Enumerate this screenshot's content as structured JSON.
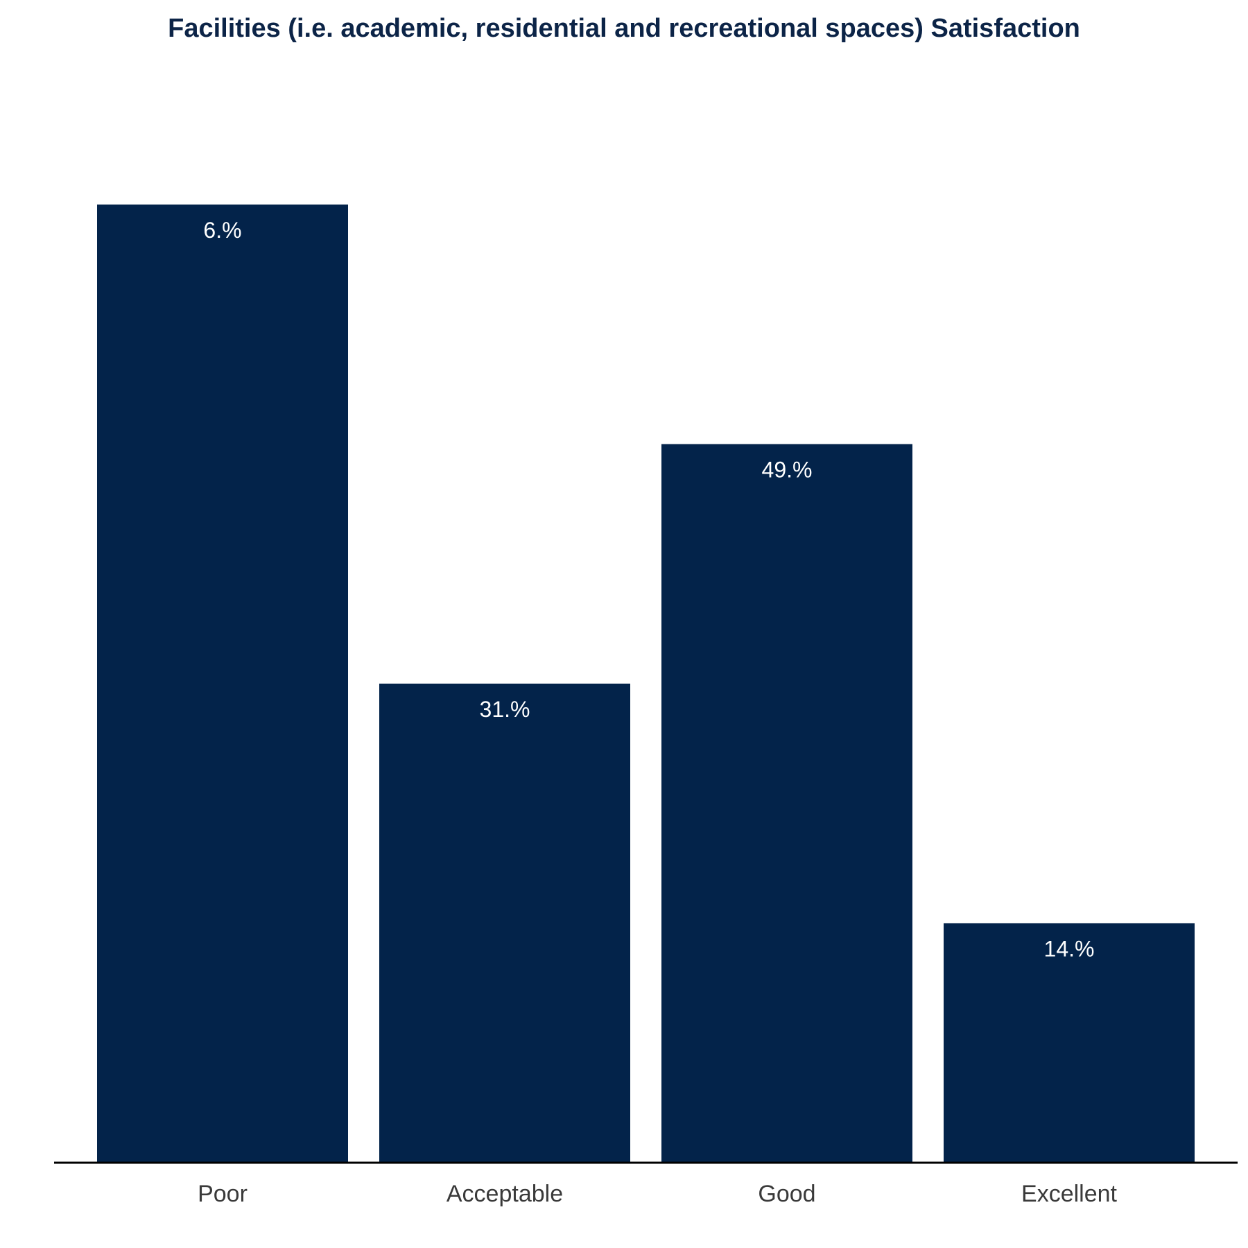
{
  "chart_data": {
    "type": "bar",
    "title": "Facilities (i.e. academic, residential and recreational spaces) Satisfaction",
    "xlabel": "",
    "ylabel": "",
    "categories": [
      "Poor",
      "Acceptable",
      "Good",
      "Excellent"
    ],
    "values": [
      6,
      31,
      49,
      14
    ],
    "data_labels": [
      "6.%",
      "31.%",
      "49.%",
      "14.%"
    ],
    "bar_heights_as_drawn_rank": [
      4,
      2,
      3,
      1
    ],
    "grid": false,
    "legend": "none"
  },
  "colors": {
    "bar": "#03234a",
    "title": "#0c2447",
    "bar_label": "#ffffff",
    "tick_label": "#3a3a3a",
    "baseline": "#000000"
  }
}
